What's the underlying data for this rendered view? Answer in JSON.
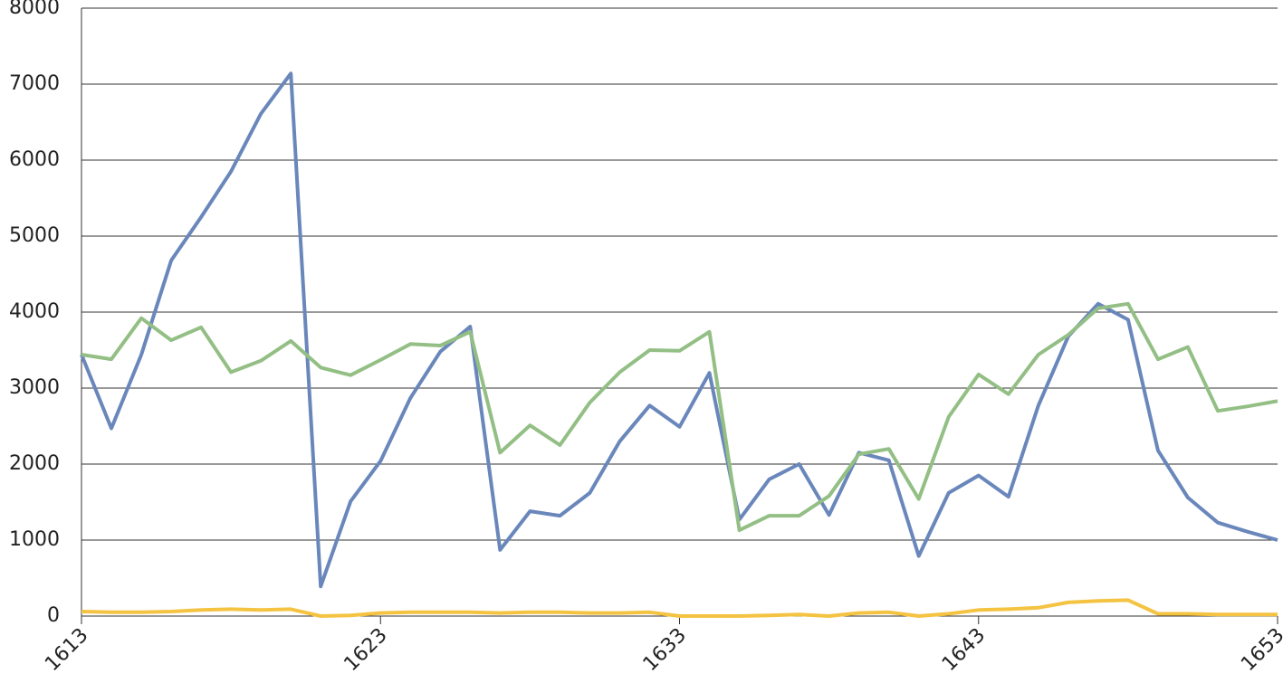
{
  "chart_data": {
    "type": "line",
    "x": [
      1613,
      1614,
      1615,
      1616,
      1617,
      1618,
      1619,
      1620,
      1621,
      1622,
      1623,
      1624,
      1625,
      1626,
      1627,
      1628,
      1629,
      1630,
      1631,
      1632,
      1633,
      1634,
      1635,
      1636,
      1637,
      1638,
      1639,
      1640,
      1641,
      1642,
      1643,
      1644,
      1645,
      1646,
      1647,
      1648,
      1649,
      1650,
      1651,
      1652,
      1653
    ],
    "series": [
      {
        "color": "#6a87bb",
        "values": [
          3440,
          2470,
          3440,
          4680,
          5250,
          5850,
          6610,
          7140,
          390,
          1510,
          2040,
          2870,
          3480,
          3810,
          870,
          1380,
          1320,
          1620,
          2300,
          2770,
          2490,
          3200,
          1270,
          1800,
          2000,
          1330,
          2150,
          2050,
          790,
          1620,
          1850,
          1570,
          2770,
          3680,
          4110,
          3900,
          2180,
          1560,
          1230,
          1110,
          1000
        ]
      },
      {
        "color": "#93bf85",
        "values": [
          3440,
          3380,
          3920,
          3630,
          3800,
          3210,
          3360,
          3620,
          3270,
          3170,
          3370,
          3580,
          3560,
          3740,
          2150,
          2510,
          2250,
          2810,
          3210,
          3500,
          3490,
          3740,
          1130,
          1320,
          1320,
          1580,
          2130,
          2200,
          1540,
          2620,
          3180,
          2920,
          3440,
          3700,
          4050,
          4110,
          3380,
          3540,
          2700,
          2760,
          2830
        ]
      },
      {
        "color": "#f5c342",
        "values": [
          60,
          50,
          50,
          60,
          80,
          90,
          80,
          90,
          0,
          10,
          40,
          50,
          50,
          50,
          40,
          50,
          50,
          40,
          40,
          50,
          0,
          0,
          0,
          10,
          20,
          0,
          40,
          50,
          0,
          30,
          80,
          90,
          110,
          180,
          200,
          210,
          30,
          30,
          20,
          20,
          20
        ]
      }
    ],
    "xlim": [
      1613,
      1653
    ],
    "xticks": [
      1613,
      1623,
      1633,
      1643,
      1653
    ],
    "ylim": [
      0,
      8000
    ],
    "yticks": [
      0,
      1000,
      2000,
      3000,
      4000,
      5000,
      6000,
      7000,
      8000
    ],
    "grid": true
  }
}
